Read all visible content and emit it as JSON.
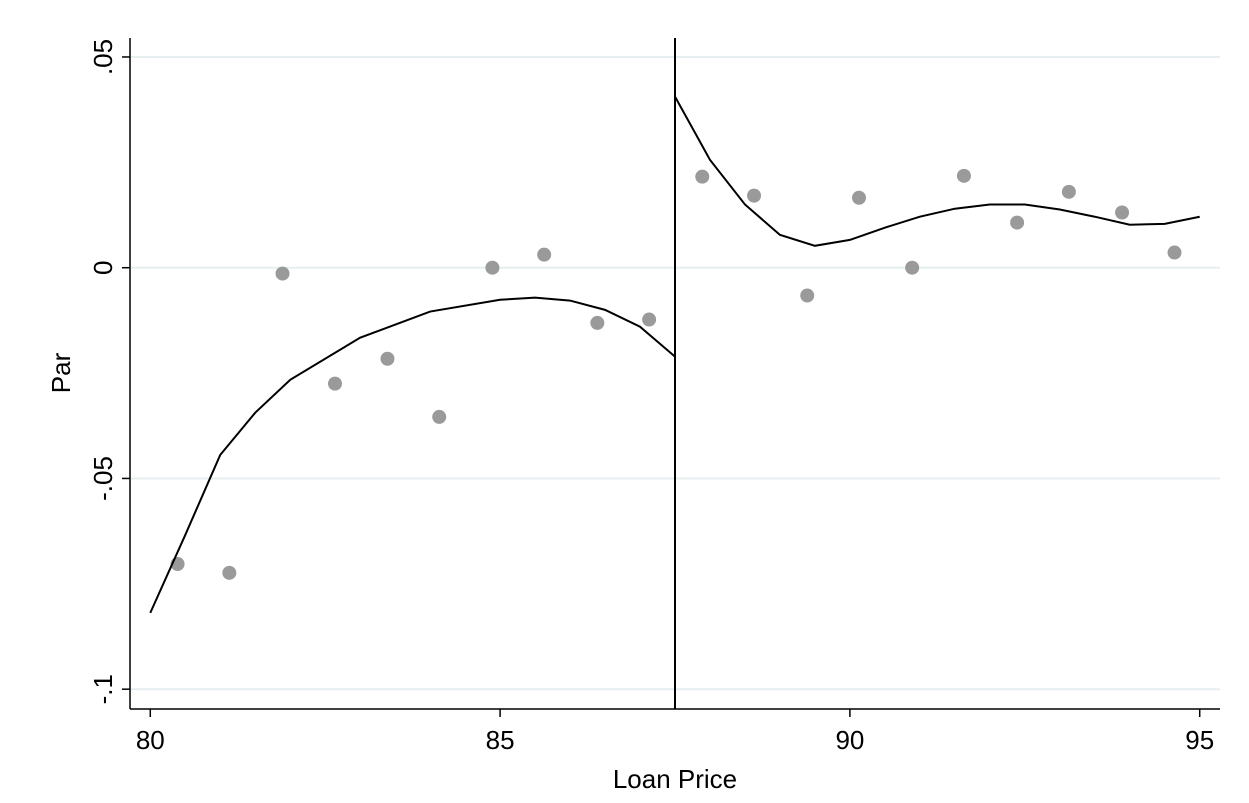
{
  "chart_data": {
    "type": "scatter",
    "x_label": "Loan Price",
    "y_label": "Par",
    "xlim": [
      79.71,
      95.29
    ],
    "ylim": [
      -0.1047,
      0.0545
    ],
    "xticks": [
      80,
      85,
      90,
      95
    ],
    "yticks": [
      {
        "value": 0.05,
        "label": ".05"
      },
      0,
      {
        "value": -0.05,
        "label": "-.05"
      },
      {
        "value": -0.1,
        "label": "-.1"
      }
    ],
    "grid": true,
    "grid_color": "#e6eff0",
    "cutoff": 87.5,
    "series": [
      {
        "kind": "points",
        "color": "#9a9a9a",
        "x": [
          80.39,
          81.13,
          81.89,
          82.64,
          83.39,
          84.13,
          84.89,
          85.63,
          86.39,
          87.13,
          87.89,
          88.63,
          89.39,
          90.13,
          90.89,
          91.63,
          92.39,
          93.13,
          93.89,
          94.64
        ],
        "values": [
          -0.0703,
          -0.0724,
          -0.0014,
          -0.0275,
          -0.0216,
          -0.0354,
          0.0,
          0.0031,
          -0.0131,
          -0.0123,
          0.0216,
          0.0171,
          -0.0066,
          0.0166,
          0.0,
          0.0218,
          0.0107,
          0.018,
          0.0131,
          0.0036
        ]
      },
      {
        "kind": "line",
        "color": "#000000",
        "x": [
          80,
          80.5,
          81,
          81.5,
          82,
          83,
          84,
          85,
          85.5,
          86,
          86.5,
          87,
          87.5
        ],
        "values": [
          -0.0819,
          -0.0634,
          -0.0444,
          -0.0344,
          -0.0266,
          -0.0166,
          -0.0104,
          -0.0076,
          -0.0071,
          -0.0078,
          -0.01,
          -0.014,
          -0.0211
        ]
      },
      {
        "kind": "line",
        "color": "#000000",
        "x": [
          87.5,
          88,
          88.5,
          89,
          89.5,
          90,
          90.5,
          91,
          91.5,
          92,
          92.5,
          93,
          93.5,
          94,
          94.5,
          95
        ],
        "values": [
          0.0406,
          0.0256,
          0.015,
          0.0078,
          0.0052,
          0.0066,
          0.0095,
          0.0121,
          0.014,
          0.015,
          0.015,
          0.0138,
          0.0121,
          0.0102,
          0.0104,
          0.0121
        ]
      }
    ]
  }
}
